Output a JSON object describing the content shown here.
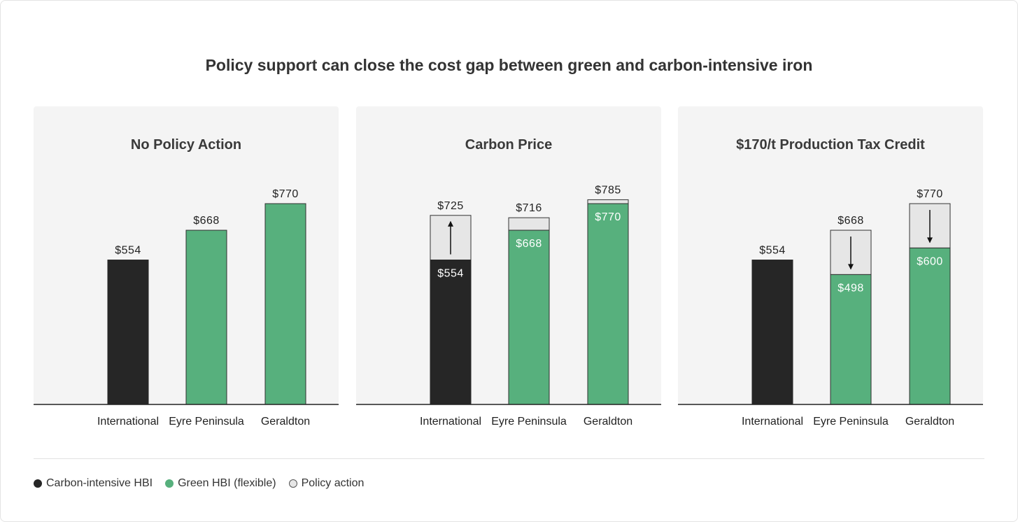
{
  "title": "Policy support can close the cost gap between green and carbon-intensive iron",
  "colors": {
    "carbon": "#262626",
    "green": "#57b07d",
    "policy": "#e6e6e6",
    "panel_bg": "#f4f4f4"
  },
  "legend": [
    {
      "label": "Carbon-intensive HBI",
      "key": "carbon"
    },
    {
      "label": "Green HBI (flexible)",
      "key": "green"
    },
    {
      "label": "Policy action",
      "key": "policy"
    }
  ],
  "chart_data": [
    {
      "type": "bar",
      "title": "No Policy Action",
      "categories": [
        "International",
        "Eyre Peninsula",
        "Geraldton"
      ],
      "ylim": [
        0,
        850
      ],
      "bars": [
        {
          "category": "International",
          "base": 554,
          "base_type": "carbon",
          "top": 554,
          "base_label": "",
          "top_label": "$554",
          "arrow": ""
        },
        {
          "category": "Eyre Peninsula",
          "base": 668,
          "base_type": "green",
          "top": 668,
          "base_label": "",
          "top_label": "$668",
          "arrow": ""
        },
        {
          "category": "Geraldton",
          "base": 770,
          "base_type": "green",
          "top": 770,
          "base_label": "",
          "top_label": "$770",
          "arrow": ""
        }
      ]
    },
    {
      "type": "bar",
      "title": "Carbon Price",
      "categories": [
        "International",
        "Eyre Peninsula",
        "Geraldton"
      ],
      "ylim": [
        0,
        850
      ],
      "bars": [
        {
          "category": "International",
          "base": 554,
          "base_type": "carbon",
          "top": 725,
          "base_label": "$554",
          "top_label": "$725",
          "arrow": "up"
        },
        {
          "category": "Eyre Peninsula",
          "base": 668,
          "base_type": "green",
          "top": 716,
          "base_label": "$668",
          "top_label": "$716",
          "arrow": ""
        },
        {
          "category": "Geraldton",
          "base": 770,
          "base_type": "green",
          "top": 785,
          "base_label": "$770",
          "top_label": "$785",
          "arrow": ""
        }
      ]
    },
    {
      "type": "bar",
      "title": "$170/t Production Tax Credit",
      "categories": [
        "International",
        "Eyre Peninsula",
        "Geraldton"
      ],
      "ylim": [
        0,
        850
      ],
      "bars": [
        {
          "category": "International",
          "base": 554,
          "base_type": "carbon",
          "top": 554,
          "base_label": "",
          "top_label": "$554",
          "arrow": ""
        },
        {
          "category": "Eyre Peninsula",
          "base": 498,
          "base_type": "green",
          "top": 668,
          "base_label": "$498",
          "top_label": "$668",
          "arrow": "down"
        },
        {
          "category": "Geraldton",
          "base": 600,
          "base_type": "green",
          "top": 770,
          "base_label": "$600",
          "top_label": "$770",
          "arrow": "down"
        }
      ]
    }
  ]
}
